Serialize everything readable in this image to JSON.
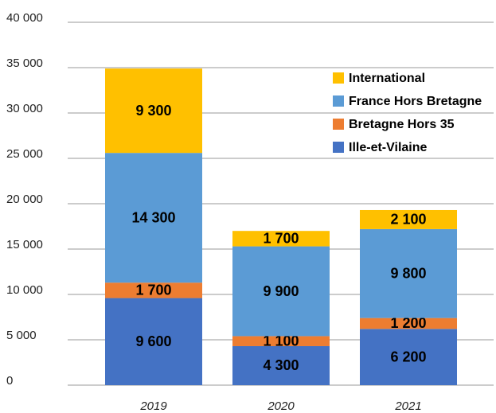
{
  "chart_data": {
    "type": "stacked_bar",
    "categories": [
      "2019",
      "2020",
      "2021"
    ],
    "series": [
      {
        "name": "Ille-et-Vilaine",
        "color": "#4472c4",
        "values": [
          9600,
          4300,
          6200
        ],
        "value_labels": [
          "9 600",
          "4 300",
          "6 200"
        ]
      },
      {
        "name": "Bretagne Hors 35",
        "color": "#ed7d31",
        "values": [
          1700,
          1100,
          1200
        ],
        "value_labels": [
          "1 700",
          "1 100",
          "1 200"
        ]
      },
      {
        "name": "France Hors Bretagne",
        "color": "#5b9bd5",
        "values": [
          14300,
          9900,
          9800
        ],
        "value_labels": [
          "14 300",
          "9 900",
          "9 800"
        ]
      },
      {
        "name": "International",
        "color": "#ffc000",
        "values": [
          9300,
          1700,
          2100
        ],
        "value_labels": [
          "9 300",
          "1 700",
          "2 100"
        ]
      }
    ],
    "ylim": [
      0,
      40000
    ],
    "yticks": [
      0,
      {
        "value": 5000,
        "label": "5 000"
      },
      {
        "value": 10000,
        "label": "10 000"
      },
      {
        "value": 15000,
        "label": "15 000"
      },
      {
        "value": 20000,
        "label": "20 000"
      },
      {
        "value": 25000,
        "label": "25 000"
      },
      {
        "value": 30000,
        "label": "30 000"
      },
      {
        "value": 35000,
        "label": "35 000"
      },
      {
        "value": 40000,
        "label": "40 000"
      }
    ],
    "grid": true,
    "legend": "upper right"
  }
}
